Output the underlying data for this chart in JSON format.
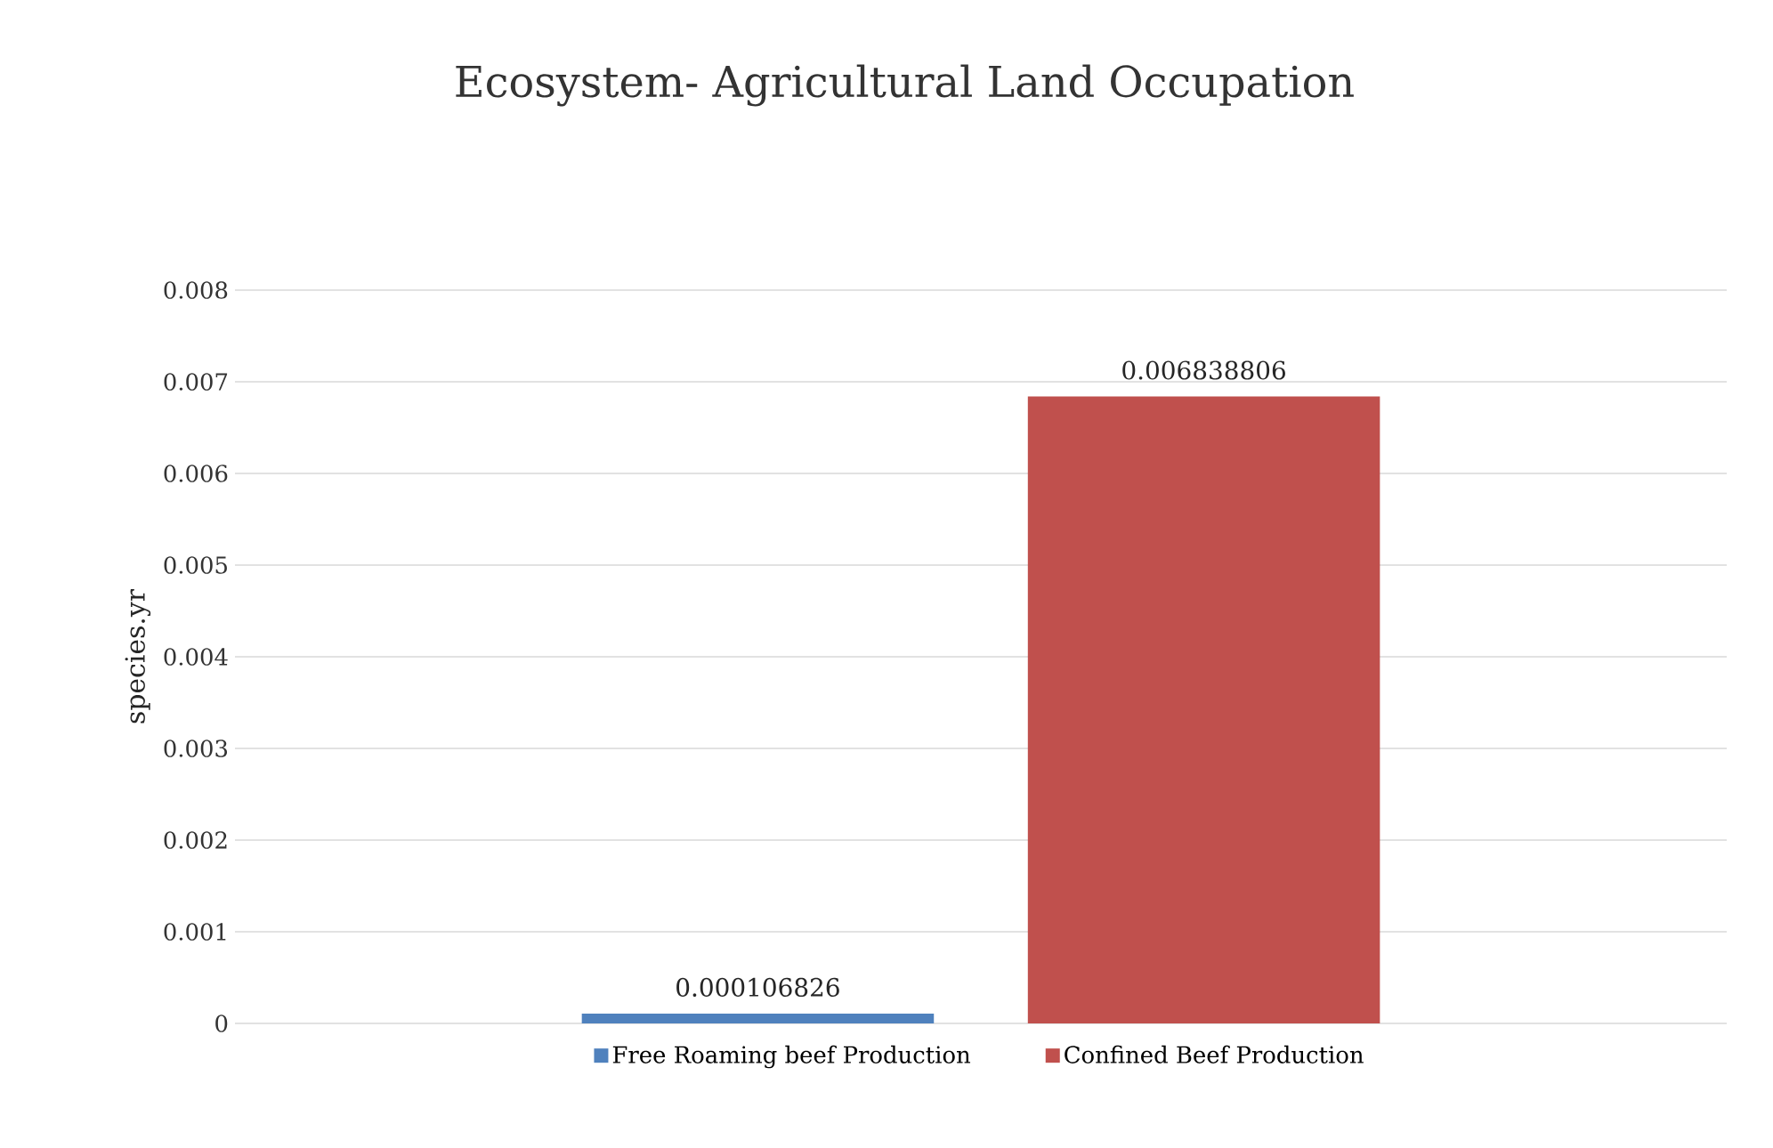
{
  "chart_data": {
    "type": "bar",
    "title": "Ecosystem- Agricultural Land Occupation",
    "ylabel": "species.yr",
    "categories": [
      null
    ],
    "series": [
      {
        "name": "Free Roaming beef Production",
        "color": "#4f81bd",
        "values": [
          0.000106826
        ]
      },
      {
        "name": "Confined Beef Production",
        "color": "#c0504d",
        "values": [
          0.006838806
        ]
      }
    ],
    "ylim": [
      0,
      0.008
    ],
    "yticks": [
      0,
      0.001,
      0.002,
      0.003,
      0.004,
      0.005,
      0.006,
      0.007,
      0.008
    ],
    "grid": "y",
    "legend": "bottom",
    "data_labels": true
  }
}
